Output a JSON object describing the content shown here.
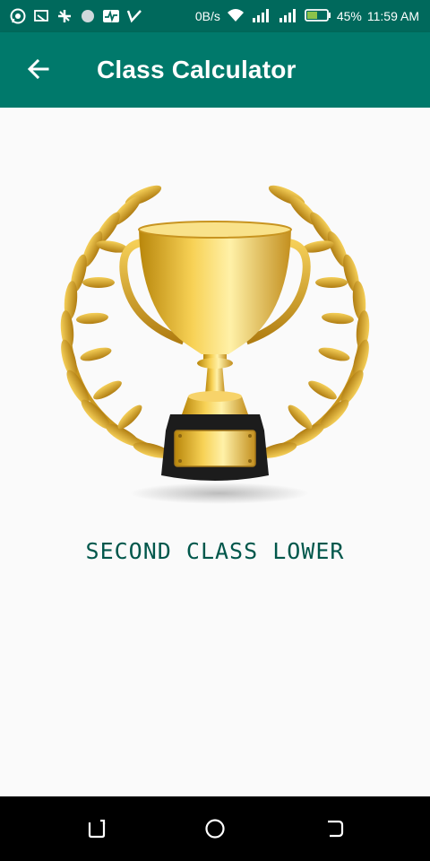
{
  "status_bar": {
    "left_icons": [
      "whatsapp-icon",
      "cast-icon",
      "sync-icon",
      "circle-icon",
      "pulse-icon",
      "check-icon"
    ],
    "speed": "0B/s",
    "battery_percent": "45%",
    "time": "11:59 AM"
  },
  "app_bar": {
    "title": "Class Calculator",
    "back_icon": "arrow-back-icon"
  },
  "main": {
    "image": "trophy-laurel-image",
    "result_text": "SECOND CLASS LOWER"
  },
  "nav_bar": {
    "buttons": [
      "recents-icon",
      "home-icon",
      "back-icon"
    ]
  },
  "colors": {
    "status_bar": "#00695c",
    "app_bar": "#00796b",
    "result_text": "#00574b",
    "gold": "#d4a017"
  }
}
